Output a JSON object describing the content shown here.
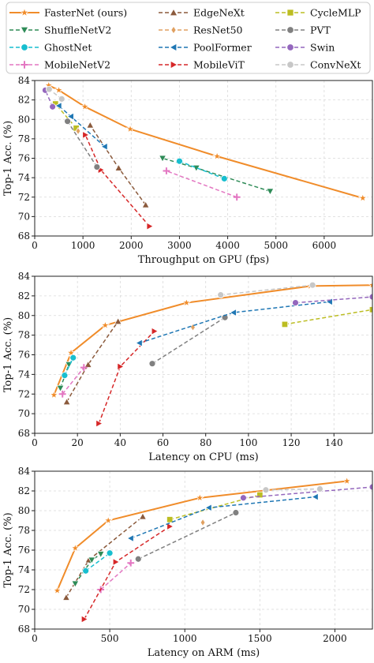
{
  "legend": {
    "placement": "top",
    "entries": [
      {
        "name": "FasterNet (ours)",
        "color": "#f08c2a",
        "marker": "star"
      },
      {
        "name": "EdgeNeXt",
        "color": "#8b5a3c",
        "marker": "triangle-up"
      },
      {
        "name": "CycleMLP",
        "color": "#bcbd22",
        "marker": "square"
      },
      {
        "name": "ShuffleNetV2",
        "color": "#2e8b57",
        "marker": "triangle-down"
      },
      {
        "name": "ResNet50",
        "color": "#e0a060",
        "marker": "diamond"
      },
      {
        "name": "PVT",
        "color": "#808080",
        "marker": "circle"
      },
      {
        "name": "GhostNet",
        "color": "#17becf",
        "marker": "circle"
      },
      {
        "name": "PoolFormer",
        "color": "#1f77b4",
        "marker": "triangle-left"
      },
      {
        "name": "Swin",
        "color": "#9467bd",
        "marker": "circle"
      },
      {
        "name": "MobileNetV2",
        "color": "#e377c2",
        "marker": "plus"
      },
      {
        "name": "MobileViT",
        "color": "#d62728",
        "marker": "triangle-right"
      },
      {
        "name": "ConvNeXt",
        "color": "#c7c7c7",
        "marker": "circle"
      }
    ]
  },
  "chart_data": [
    {
      "type": "line",
      "xlabel": "Throughput on GPU (fps)",
      "ylabel": "Top-1 Acc. (%)",
      "xlim": [
        0,
        7000
      ],
      "ylim": [
        68,
        84
      ],
      "xticks": [
        0,
        1000,
        2000,
        3000,
        4000,
        5000,
        6000
      ],
      "yticks": [
        68,
        70,
        72,
        74,
        76,
        78,
        80,
        82,
        84
      ],
      "grid": true,
      "series": [
        {
          "name": "FasterNet (ours)",
          "points": [
            [
              6800,
              71.9
            ],
            [
              3780,
              76.2
            ],
            [
              1980,
              79.0
            ],
            [
              1040,
              81.3
            ],
            [
              500,
              83.0
            ],
            [
              290,
              83.5
            ]
          ]
        },
        {
          "name": "EdgeNeXt",
          "points": [
            [
              2300,
              71.2
            ],
            [
              1740,
              75.0
            ],
            [
              1150,
              79.4
            ]
          ]
        },
        {
          "name": "ShuffleNetV2",
          "points": [
            [
              4880,
              72.6
            ],
            [
              3350,
              75.0
            ],
            [
              2650,
              76.0
            ]
          ]
        },
        {
          "name": "GhostNet",
          "points": [
            [
              3930,
              73.9
            ],
            [
              3000,
              75.7
            ]
          ]
        },
        {
          "name": "MobileNetV2",
          "points": [
            [
              4190,
              72.0
            ],
            [
              2730,
              74.7
            ]
          ]
        },
        {
          "name": "MobileViT",
          "points": [
            [
              2380,
              69.0
            ],
            [
              1370,
              74.8
            ],
            [
              1050,
              78.4
            ]
          ]
        },
        {
          "name": "CycleMLP",
          "points": [
            [
              860,
              79.1
            ],
            [
              430,
              81.6
            ]
          ]
        },
        {
          "name": "ResNet50",
          "points": [
            [
              900,
              78.8
            ]
          ]
        },
        {
          "name": "PVT",
          "points": [
            [
              1290,
              75.1
            ],
            [
              680,
              79.8
            ]
          ]
        },
        {
          "name": "PoolFormer",
          "points": [
            [
              1450,
              77.2
            ],
            [
              750,
              80.3
            ],
            [
              500,
              81.4
            ]
          ]
        },
        {
          "name": "Swin",
          "points": [
            [
              370,
              81.3
            ],
            [
              220,
              83.0
            ]
          ]
        },
        {
          "name": "ConvNeXt",
          "points": [
            [
              560,
              82.1
            ],
            [
              300,
              83.1
            ]
          ]
        }
      ]
    },
    {
      "type": "line",
      "xlabel": "Latency on CPU (ms)",
      "ylabel": "Top-1 Acc. (%)",
      "xlim": [
        0,
        158
      ],
      "ylim": [
        68,
        84
      ],
      "xticks": [
        0,
        20,
        40,
        60,
        80,
        100,
        120,
        140
      ],
      "yticks": [
        68,
        70,
        72,
        74,
        76,
        78,
        80,
        82,
        84
      ],
      "grid": true,
      "series": [
        {
          "name": "FasterNet (ours)",
          "points": [
            [
              9,
              71.9
            ],
            [
              17,
              76.2
            ],
            [
              33,
              79.0
            ],
            [
              71,
              81.3
            ],
            [
              129,
              83.0
            ],
            [
              158,
              83.1
            ]
          ]
        },
        {
          "name": "EdgeNeXt",
          "points": [
            [
              15,
              71.2
            ],
            [
              25,
              75.0
            ],
            [
              39,
              79.4
            ]
          ]
        },
        {
          "name": "ShuffleNetV2",
          "points": [
            [
              12,
              72.6
            ],
            [
              16,
              75.0
            ],
            [
              18,
              75.6
            ]
          ]
        },
        {
          "name": "GhostNet",
          "points": [
            [
              14,
              73.9
            ],
            [
              18,
              75.7
            ]
          ]
        },
        {
          "name": "MobileNetV2",
          "points": [
            [
              13,
              72.0
            ],
            [
              23,
              74.7
            ]
          ]
        },
        {
          "name": "MobileViT",
          "points": [
            [
              30,
              69.0
            ],
            [
              40,
              74.8
            ],
            [
              56,
              78.4
            ]
          ]
        },
        {
          "name": "CycleMLP",
          "points": [
            [
              117,
              79.1
            ],
            [
              158,
              80.6
            ]
          ]
        },
        {
          "name": "ResNet50",
          "points": [
            [
              74,
              78.8
            ]
          ]
        },
        {
          "name": "PVT",
          "points": [
            [
              55,
              75.1
            ],
            [
              89,
              79.8
            ]
          ]
        },
        {
          "name": "PoolFormer",
          "points": [
            [
              49,
              77.2
            ],
            [
              93,
              80.3
            ],
            [
              138,
              81.4
            ]
          ]
        },
        {
          "name": "Swin",
          "points": [
            [
              122,
              81.3
            ],
            [
              158,
              81.9
            ]
          ]
        },
        {
          "name": "ConvNeXt",
          "points": [
            [
              87,
              82.1
            ],
            [
              130,
              83.1
            ]
          ]
        }
      ]
    },
    {
      "type": "line",
      "xlabel": "Latency on ARM (ms)",
      "ylabel": "Top-1 Acc. (%)",
      "xlim": [
        0,
        2250
      ],
      "ylim": [
        68,
        84
      ],
      "xticks": [
        0,
        500,
        1000,
        1500,
        2000
      ],
      "yticks": [
        68,
        70,
        72,
        74,
        76,
        78,
        80,
        82,
        84
      ],
      "grid": true,
      "series": [
        {
          "name": "FasterNet (ours)",
          "points": [
            [
              150,
              71.9
            ],
            [
              270,
              76.2
            ],
            [
              490,
              79.0
            ],
            [
              1100,
              81.3
            ],
            [
              2080,
              83.0
            ]
          ]
        },
        {
          "name": "EdgeNeXt",
          "points": [
            [
              210,
              71.2
            ],
            [
              360,
              75.0
            ],
            [
              720,
              79.4
            ]
          ]
        },
        {
          "name": "ShuffleNetV2",
          "points": [
            [
              270,
              72.6
            ],
            [
              380,
              75.0
            ],
            [
              440,
              75.6
            ]
          ]
        },
        {
          "name": "GhostNet",
          "points": [
            [
              340,
              73.9
            ],
            [
              500,
              75.7
            ]
          ]
        },
        {
          "name": "MobileNetV2",
          "points": [
            [
              440,
              72.0
            ],
            [
              640,
              74.7
            ]
          ]
        },
        {
          "name": "MobileViT",
          "points": [
            [
              330,
              69.0
            ],
            [
              540,
              74.8
            ],
            [
              900,
              78.4
            ]
          ]
        },
        {
          "name": "CycleMLP",
          "points": [
            [
              900,
              79.1
            ],
            [
              1500,
              81.6
            ]
          ]
        },
        {
          "name": "ResNet50",
          "points": [
            [
              1120,
              78.8
            ]
          ]
        },
        {
          "name": "PVT",
          "points": [
            [
              690,
              75.1
            ],
            [
              1340,
              79.8
            ]
          ]
        },
        {
          "name": "PoolFormer",
          "points": [
            [
              640,
              77.2
            ],
            [
              1160,
              80.3
            ],
            [
              1870,
              81.4
            ]
          ]
        },
        {
          "name": "Swin",
          "points": [
            [
              1390,
              81.3
            ],
            [
              2250,
              82.4
            ]
          ]
        },
        {
          "name": "ConvNeXt",
          "points": [
            [
              1540,
              82.1
            ],
            [
              1900,
              82.2
            ]
          ]
        }
      ]
    }
  ]
}
